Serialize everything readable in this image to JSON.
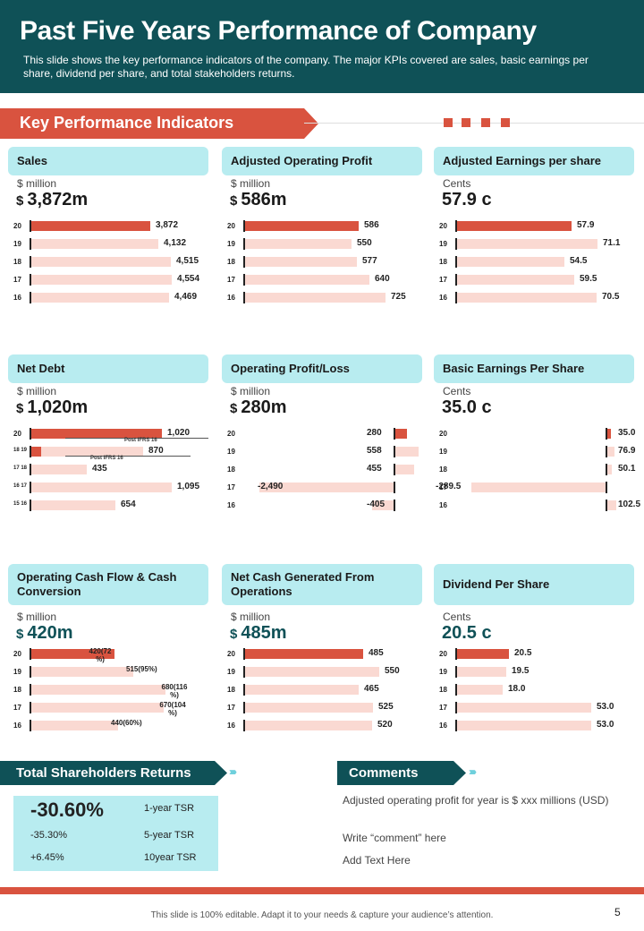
{
  "header": {
    "title": "Past Five Years Performance of Company",
    "subtitle": "This slide shows the key performance  indicators of the company. The major KPIs covered  are sales, basic earnings per share, dividend  per share, and total stakeholders returns."
  },
  "kpi_banner": "Key Performance Indicators",
  "colors": {
    "teal": "#0f5157",
    "accent": "#d9533f",
    "light_bar": "#fad9d2",
    "card": "#b8ecf0"
  },
  "cards": [
    {
      "title": "Sales",
      "unit": "$ million",
      "value": "3,872m",
      "dollar": true,
      "rows": [
        {
          "year": "20",
          "value": 3872,
          "label": "3,872"
        },
        {
          "year": "19",
          "value": 4132,
          "label": "4,132"
        },
        {
          "year": "18",
          "value": 4515,
          "label": "4,515"
        },
        {
          "year": "17",
          "value": 4554,
          "label": "4,554"
        },
        {
          "year": "16",
          "value": 4469,
          "label": "4,469"
        }
      ]
    },
    {
      "title": "Adjusted Operating Profit",
      "unit": "$ million",
      "value": "586m",
      "dollar": true,
      "rows": [
        {
          "year": "20",
          "value": 586,
          "label": "586"
        },
        {
          "year": "19",
          "value": 550,
          "label": "550"
        },
        {
          "year": "18",
          "value": 577,
          "label": "577"
        },
        {
          "year": "17",
          "value": 640,
          "label": "640"
        },
        {
          "year": "16",
          "value": 725,
          "label": "725"
        }
      ]
    },
    {
      "title": "Adjusted Earnings per share",
      "unit": "Cents",
      "value": "57.9 c",
      "dollar": false,
      "rows": [
        {
          "year": "20",
          "value": 57.9,
          "label": "57.9"
        },
        {
          "year": "19",
          "value": 71.1,
          "label": "71.1"
        },
        {
          "year": "18",
          "value": 54.5,
          "label": "54.5"
        },
        {
          "year": "17",
          "value": 59.5,
          "label": "59.5"
        },
        {
          "year": "16",
          "value": 70.5,
          "label": "70.5"
        }
      ]
    },
    {
      "title": "Net Debt",
      "unit": "$ million",
      "value": "1,020m",
      "dollar": true,
      "ifrs": [
        "Post IFRS 16",
        "Post IFRS 16"
      ],
      "rows": [
        {
          "year": "20",
          "value": 1020,
          "label": "1,020",
          "pre": 340
        },
        {
          "year": "18 19",
          "value": 870,
          "label": "870",
          "pre": 200
        },
        {
          "year": "17 18",
          "value": 435,
          "label": "435"
        },
        {
          "year": "16 17",
          "value": 1095,
          "label": "1,095"
        },
        {
          "year": "15 16",
          "value": 654,
          "label": "654"
        }
      ]
    },
    {
      "title": "Operating Profit/Loss",
      "unit": "$ million",
      "value": "280m",
      "dollar": true,
      "rows": [
        {
          "year": "20",
          "value": 280,
          "label": "280"
        },
        {
          "year": "19",
          "value": 558,
          "label": "558"
        },
        {
          "year": "18",
          "value": 455,
          "label": "455"
        },
        {
          "year": "17",
          "value": -2490,
          "label": "-2,490"
        },
        {
          "year": "16",
          "value": -405,
          "label": "-405"
        }
      ]
    },
    {
      "title": "Basic Earnings Per Share",
      "unit": "Cents",
      "value": "35.0 c",
      "dollar": false,
      "rows": [
        {
          "year": "20",
          "value": 35.0,
          "label": "35.0"
        },
        {
          "year": "19",
          "value": 76.9,
          "label": "76.9"
        },
        {
          "year": "18",
          "value": 50.1,
          "label": "50.1"
        },
        {
          "year": "17",
          "value": -289.5,
          "label": "-289.5"
        },
        {
          "year": "16",
          "value": 102.5,
          "label": "102.5"
        }
      ]
    },
    {
      "title": "Operating Cash Flow & Cash Conversion",
      "unit": "$ million",
      "value": "420m",
      "dollar": true,
      "rows": [
        {
          "year": "20",
          "value": 420,
          "label": "420(72 %)"
        },
        {
          "year": "19",
          "value": 515,
          "label": "515(95%)"
        },
        {
          "year": "18",
          "value": 680,
          "label": "680(116 %)"
        },
        {
          "year": "17",
          "value": 670,
          "label": "670(104 %)"
        },
        {
          "year": "16",
          "value": 440,
          "label": "440(60%)"
        }
      ]
    },
    {
      "title": "Net Cash Generated From Operations",
      "unit": "$ million",
      "value": "485m",
      "dollar": true,
      "rows": [
        {
          "year": "20",
          "value": 485,
          "label": "485"
        },
        {
          "year": "19",
          "value": 550,
          "label": "550"
        },
        {
          "year": "18",
          "value": 465,
          "label": "465"
        },
        {
          "year": "17",
          "value": 525,
          "label": "525"
        },
        {
          "year": "16",
          "value": 520,
          "label": "520"
        }
      ]
    },
    {
      "title": "Dividend Per Share",
      "unit": "Cents",
      "value": "20.5 c",
      "dollar": false,
      "rows": [
        {
          "year": "20",
          "value": 20.5,
          "label": "20.5"
        },
        {
          "year": "19",
          "value": 19.5,
          "label": "19.5"
        },
        {
          "year": "18",
          "value": 18.0,
          "label": "18.0"
        },
        {
          "year": "17",
          "value": 53.0,
          "label": "53.0"
        },
        {
          "year": "16",
          "value": 53.0,
          "label": "53.0"
        }
      ]
    }
  ],
  "tsr": {
    "title": "Total Shareholders Returns",
    "rows": [
      {
        "value": "-30.60%",
        "label": "1-year TSR"
      },
      {
        "value": "-35.30%",
        "label": "5-year TSR"
      },
      {
        "value": "+6.45%",
        "label": "10year TSR"
      }
    ]
  },
  "comments": {
    "title": "Comments",
    "items": [
      "Adjusted operating  profit  for  year is $ xxx millions (USD)",
      "Write “comment” here",
      "Add Text Here"
    ]
  },
  "footer": {
    "text": "This slide is 100% editable.  Adapt it to your needs & capture your audience’s attention.",
    "page": "5"
  }
}
